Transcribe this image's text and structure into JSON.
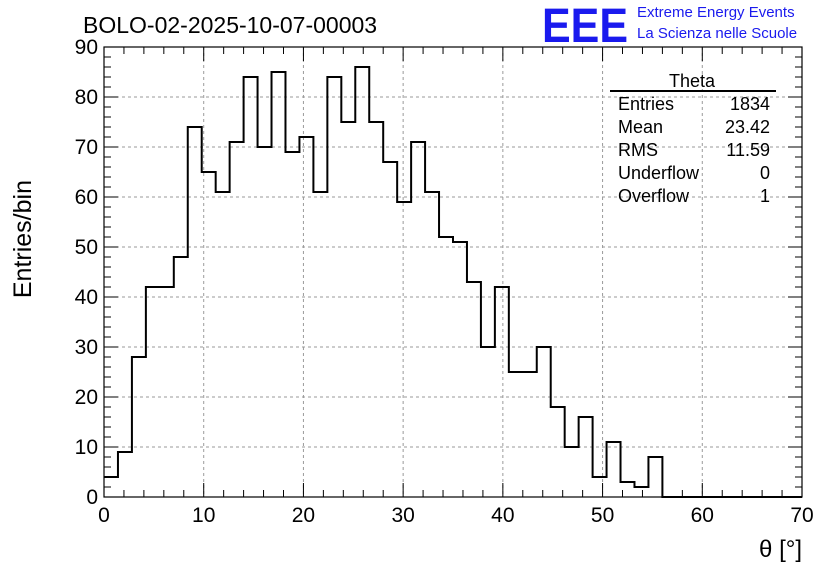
{
  "chart_data": {
    "type": "histogram",
    "title": "BOLO-02-2025-10-07-00003",
    "xlabel": "θ [°]",
    "ylabel": "Entries/bin",
    "xlim": [
      0,
      70
    ],
    "ylim": [
      0,
      90
    ],
    "bin_width": 1.4,
    "x_ticks": [
      "0",
      "10",
      "20",
      "30",
      "40",
      "50",
      "60",
      "70"
    ],
    "y_ticks": [
      "0",
      "10",
      "20",
      "30",
      "40",
      "50",
      "60",
      "70",
      "80",
      "90"
    ],
    "values": [
      4,
      9,
      28,
      42,
      42,
      48,
      74,
      65,
      61,
      71,
      84,
      70,
      85,
      69,
      72,
      61,
      84,
      75,
      86,
      75,
      67,
      59,
      71,
      61,
      52,
      51,
      43,
      30,
      42,
      25,
      25,
      30,
      18,
      10,
      16,
      4,
      11,
      3,
      2,
      8,
      0,
      0,
      0,
      0,
      0,
      0,
      0,
      0,
      0,
      0
    ],
    "grid": true,
    "stats_box": {
      "name": "Theta",
      "rows": [
        {
          "label": "Entries",
          "value": "1834"
        },
        {
          "label": "Mean",
          "value": "23.42"
        },
        {
          "label": "RMS",
          "value": "11.59"
        },
        {
          "label": "Underflow",
          "value": "0"
        },
        {
          "label": "Overflow",
          "value": "1"
        }
      ]
    }
  },
  "logo": {
    "text": "EEE",
    "line1": "Extreme Energy Events",
    "line2": "La Scienza nelle Scuole",
    "color": "#1a1aee"
  }
}
